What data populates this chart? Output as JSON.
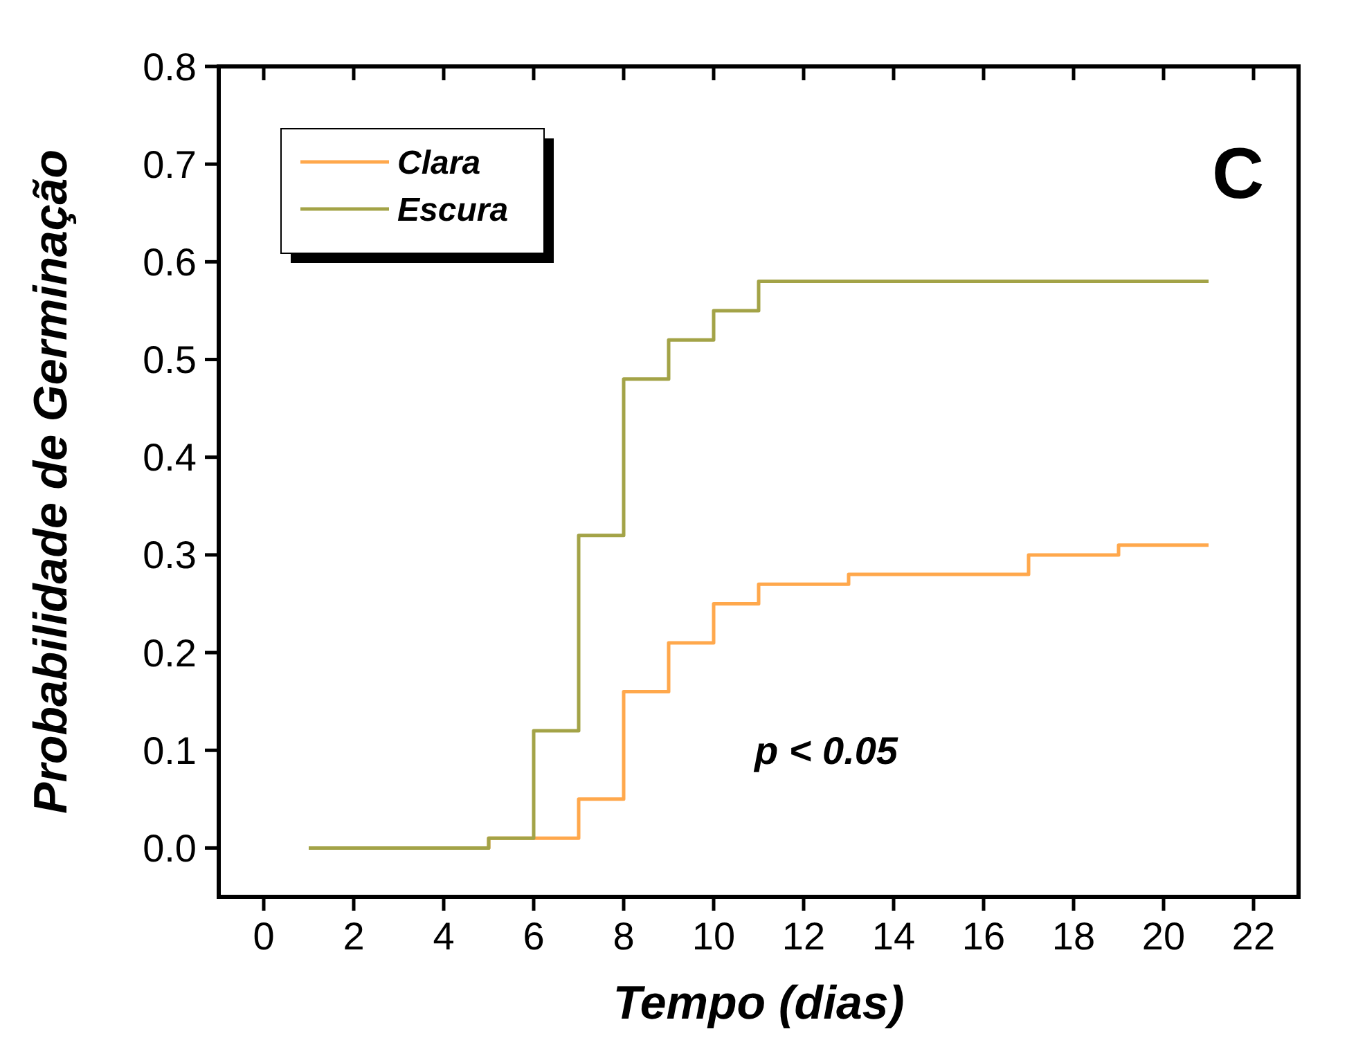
{
  "chart_data": {
    "type": "step",
    "xlabel": "Tempo (dias)",
    "ylabel": "Probabilidade de Germinação",
    "series": [
      {
        "name": "Clara",
        "color": "#ffa84c",
        "x": [
          1,
          5,
          7,
          8,
          9,
          10,
          11,
          13,
          17,
          19,
          21
        ],
        "values": [
          0,
          0.01,
          0.05,
          0.16,
          0.21,
          0.25,
          0.27,
          0.28,
          0.3,
          0.31,
          0.31
        ]
      },
      {
        "name": "Escura",
        "color": "#a3a347",
        "x": [
          1,
          5,
          6,
          7,
          8,
          9,
          10,
          11,
          21
        ],
        "values": [
          0,
          0.01,
          0.12,
          0.32,
          0.48,
          0.52,
          0.55,
          0.58,
          0.58
        ]
      }
    ],
    "xlim": [
      -1,
      23
    ],
    "xticks": [
      0,
      2,
      4,
      6,
      8,
      10,
      12,
      14,
      16,
      18,
      20,
      22
    ],
    "ylim": [
      -0.05,
      0.8
    ],
    "yticks": [
      {
        "value": 0,
        "label": "0.0"
      },
      0.1,
      0.2,
      0.3,
      0.4,
      0.5,
      0.6,
      0.7,
      0.8
    ],
    "legend": "top left",
    "grid": false,
    "line_style": "solid",
    "annotations": [
      "C",
      "p < 0.05"
    ]
  }
}
